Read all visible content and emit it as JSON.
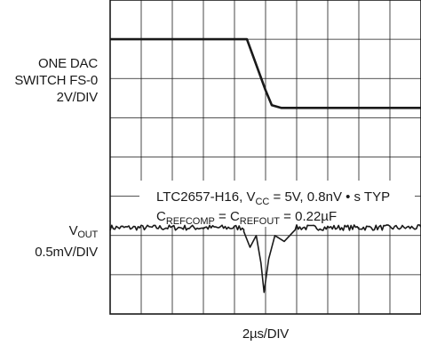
{
  "chart_data": {
    "type": "line",
    "xlabel": "2µs/DIV",
    "grid": true,
    "grid_divisions": {
      "x": 10,
      "y": 8
    },
    "x_range_div": [
      0,
      10
    ],
    "y_range_div": [
      0,
      8
    ],
    "ch1": {
      "label_lines": [
        "ONE DAC",
        "SWITCH FS-0",
        "2V/DIV"
      ],
      "high_level_div": 7.0,
      "low_level_div": 5.25,
      "points_div": [
        [
          0,
          7.0
        ],
        [
          4.4,
          7.0
        ],
        [
          5.0,
          5.7
        ],
        [
          5.2,
          5.32
        ],
        [
          5.5,
          5.25
        ],
        [
          10,
          5.25
        ]
      ]
    },
    "ch2": {
      "label_main": "V",
      "label_sub": "OUT",
      "label_scale": "0.5mV/DIV",
      "baseline_div": 2.2,
      "glitch_points_div": [
        [
          4.3,
          2.1
        ],
        [
          4.5,
          1.7
        ],
        [
          4.7,
          2.0
        ],
        [
          4.85,
          1.3
        ],
        [
          4.95,
          0.55
        ],
        [
          5.1,
          1.4
        ],
        [
          5.3,
          2.0
        ],
        [
          5.6,
          1.85
        ],
        [
          5.9,
          2.1
        ]
      ]
    },
    "annotation": {
      "line1_prefix": "LTC2657-H16, V",
      "line1_sub": "CC",
      "line1_suffix": " = 5V, 0.8nV • s TYP",
      "line2_main1": "C",
      "line2_sub1": "REFCOMP",
      "line2_mid": " = C",
      "line2_sub2": "REFOUT",
      "line2_suffix": " = 0.22µF"
    }
  }
}
